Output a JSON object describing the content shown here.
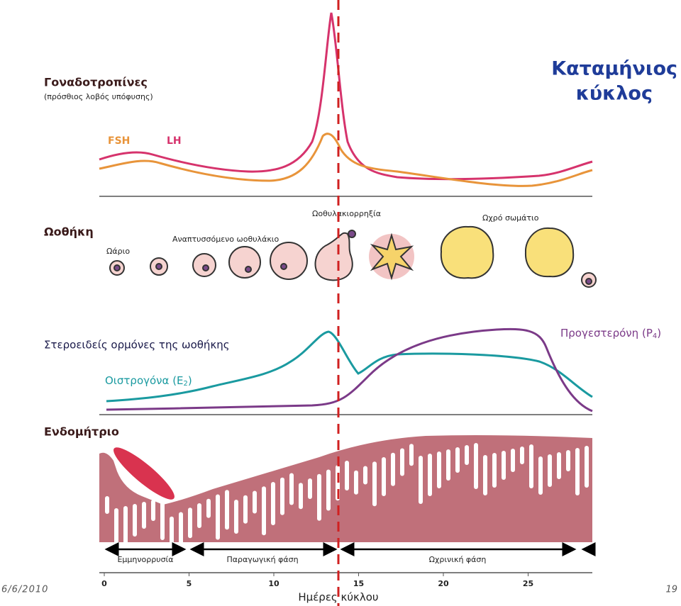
{
  "title_lines": [
    "Καταμήνιος",
    "κύκλος"
  ],
  "gonadotropins": {
    "label": "Γοναδοτροπίνες",
    "sublabel": "(πρόσθιος λοβός υπόφυσης)",
    "legend": [
      "FSH",
      "LH"
    ]
  },
  "ovary": {
    "label": "Ωοθήκη",
    "stages": [
      "Ωάριο",
      "Αναπτυσσόμενο ωοθυλάκιο",
      "Ωοθυλακιορρηξία",
      "Ωχρό σωμάτιο"
    ]
  },
  "steroids": {
    "label": "Στεροειδείς ορμόνες της ωοθήκης",
    "progesterone": {
      "text": "Προγεστερόνη (P",
      "sub": "4",
      "end": ")"
    },
    "estrogen": {
      "text": "Οιστρογόνα (E",
      "sub": "2",
      "end": ")"
    }
  },
  "endometrium": {
    "label": "Ενδομήτριο",
    "phases": [
      "Εμμηνορρυσία",
      "Παραγωγική φάση",
      "Ωχρινική φάση"
    ]
  },
  "axis": {
    "label": "Ημέρες κύκλου",
    "ticks": [
      0,
      5,
      10,
      15,
      20,
      25
    ]
  },
  "footer": {
    "date": "6/6/2010",
    "page": "19"
  }
}
